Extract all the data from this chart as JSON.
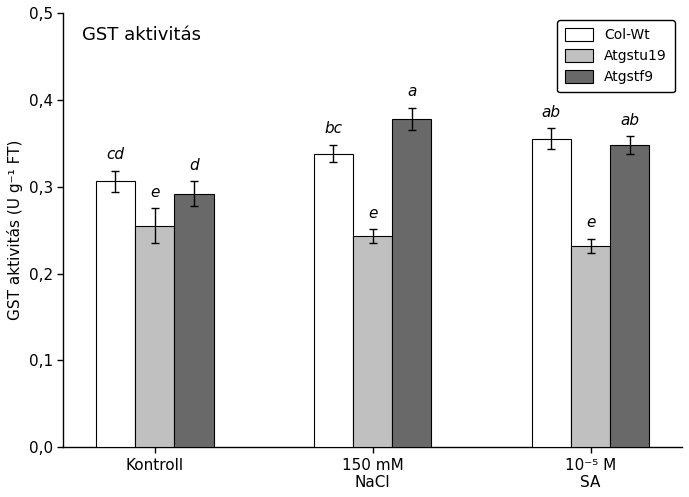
{
  "title": "GST aktivitás",
  "ylabel": "GST aktivitás (U g⁻¹ FT)",
  "groups": [
    "Kontroll",
    "150 mM\nNaCl",
    "10⁻⁵ M\nSA"
  ],
  "series": [
    "Col-Wt",
    "Atgstu19",
    "Atgstf9"
  ],
  "values": [
    [
      0.306,
      0.255,
      0.292
    ],
    [
      0.338,
      0.243,
      0.378
    ],
    [
      0.355,
      0.232,
      0.348
    ]
  ],
  "errors": [
    [
      0.012,
      0.02,
      0.014
    ],
    [
      0.01,
      0.008,
      0.013
    ],
    [
      0.012,
      0.008,
      0.01
    ]
  ],
  "bar_colors": [
    "#ffffff",
    "#c0c0c0",
    "#696969"
  ],
  "bar_edgecolors": [
    "#000000",
    "#000000",
    "#000000"
  ],
  "annotations": [
    [
      "cd",
      "e",
      "d"
    ],
    [
      "bc",
      "e",
      "a"
    ],
    [
      "ab",
      "e",
      "ab"
    ]
  ],
  "ylim": [
    0,
    0.5
  ],
  "yticks": [
    0.0,
    0.1,
    0.2,
    0.3,
    0.4,
    0.5
  ],
  "ytick_labels": [
    "0,0",
    "0,1",
    "0,2",
    "0,3",
    "0,4",
    "0,5"
  ],
  "legend_labels": [
    "Col-Wt",
    "Atgstu19",
    "Atgstf9"
  ],
  "legend_colors": [
    "#ffffff",
    "#c0c0c0",
    "#696969"
  ],
  "bar_width": 0.18,
  "group_centers": [
    1.0,
    2.0,
    3.0
  ],
  "title_fontsize": 13,
  "label_fontsize": 11,
  "tick_fontsize": 11,
  "annot_fontsize": 11,
  "legend_fontsize": 10
}
